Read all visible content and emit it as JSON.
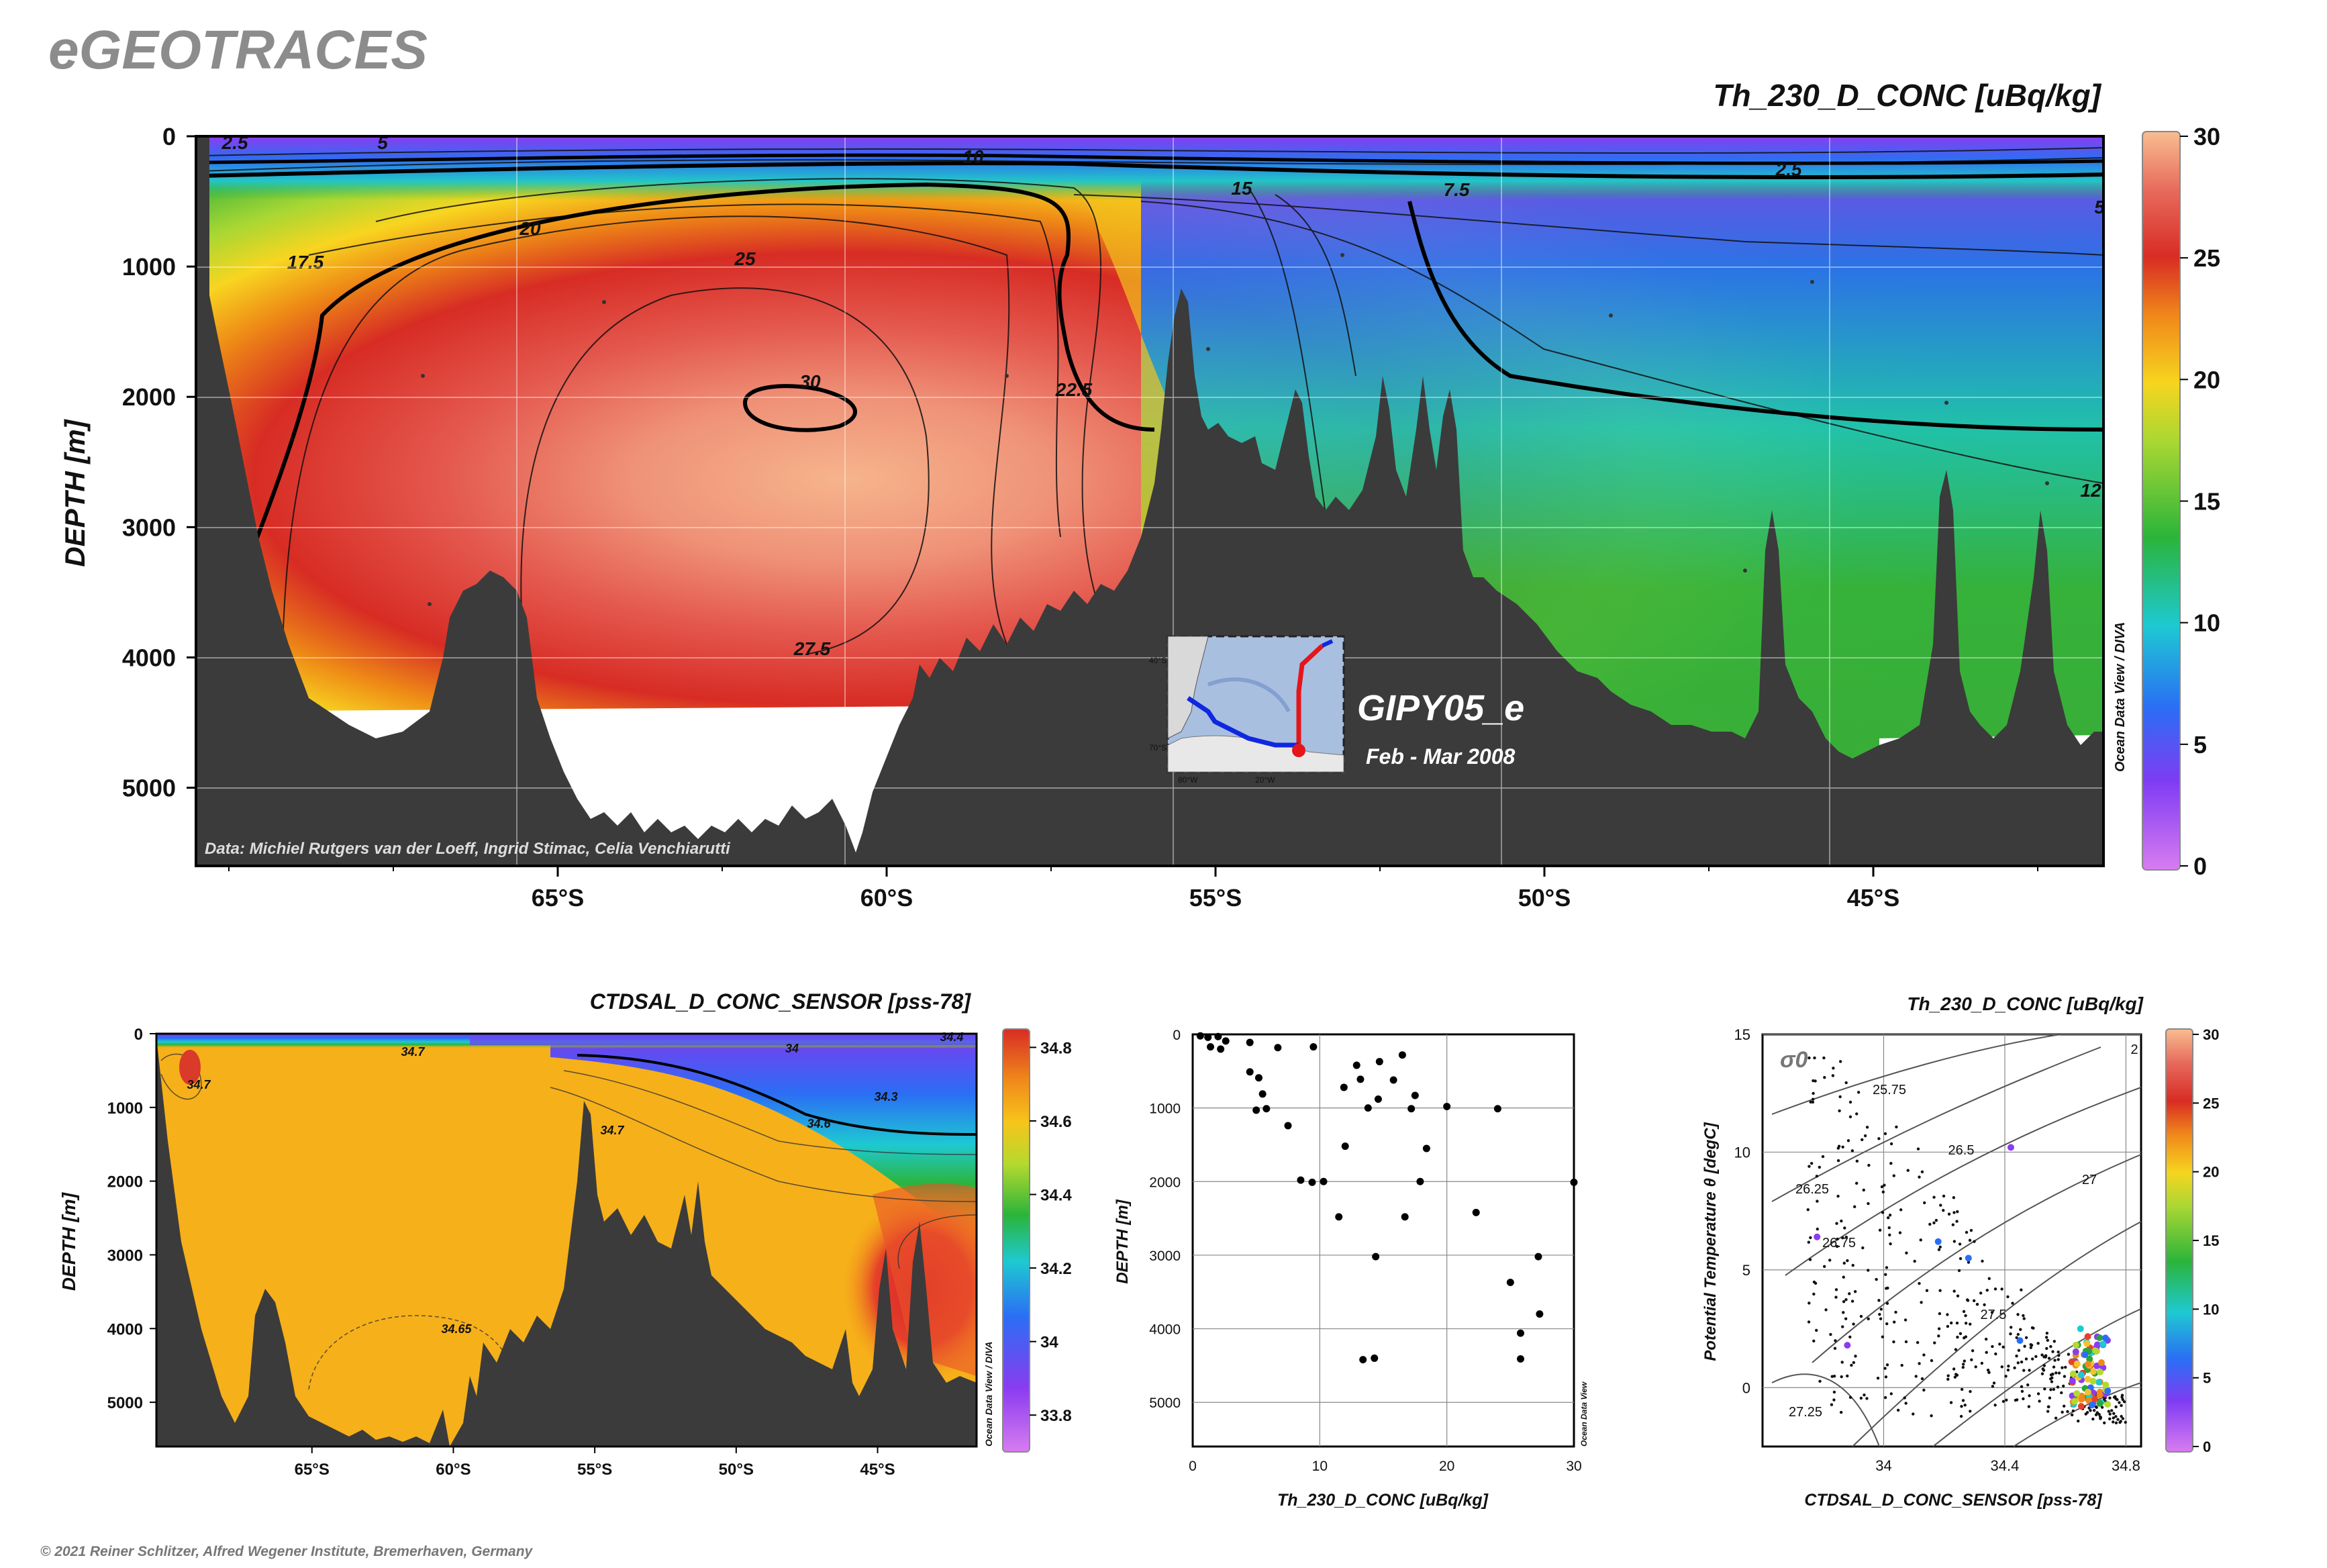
{
  "brand": "eGEOTRACES",
  "copyright": "© 2021 Reiner Schlitzer, Alfred Wegener Institute, Bremerhaven, Germany",
  "chart_data": [
    {
      "type": "heatmap",
      "title": "Th_230_D_CONC [uBq/kg]",
      "ylabel": "DEPTH [m]",
      "xlabel": "",
      "xlim": [
        70.5,
        41.5
      ],
      "ylim": [
        0,
        5600
      ],
      "x_ticks": [
        "65°S",
        "60°S",
        "55°S",
        "50°S",
        "45°S"
      ],
      "x_tick_values": [
        65,
        60,
        55,
        50,
        45
      ],
      "y_ticks": [
        "0",
        "1000",
        "2000",
        "3000",
        "4000",
        "5000"
      ],
      "y_tick_values": [
        0,
        1000,
        2000,
        3000,
        4000,
        5000
      ],
      "colorbar": {
        "ticks": [
          "0",
          "5",
          "10",
          "15",
          "20",
          "25",
          "30"
        ],
        "min": 0,
        "max": 30
      },
      "contour_labels": [
        "2.5",
        "5",
        "10",
        "15",
        "7.5",
        "2.5",
        "5",
        "17.5",
        "20",
        "25",
        "30",
        "22.5",
        "27.5",
        "12"
      ],
      "section_name": "GIPY05_e",
      "date_range": "Feb - Mar 2008",
      "credit": "Data: Michiel Rutgers van der Loeff, Ingrid Stimac, Celia Venchiarutti",
      "watermark": "Ocean Data View / DIVA",
      "inset_map_labels": [
        "40°S",
        "70°S",
        "80°W",
        "20°W"
      ]
    },
    {
      "type": "heatmap",
      "title": "CTDSAL_D_CONC_SENSOR [pss-78]",
      "ylabel": "DEPTH [m]",
      "xlabel": "",
      "x_ticks": [
        "65°S",
        "60°S",
        "55°S",
        "50°S",
        "45°S"
      ],
      "x_tick_values": [
        65,
        60,
        55,
        50,
        45
      ],
      "y_ticks": [
        "0",
        "1000",
        "2000",
        "3000",
        "4000",
        "5000"
      ],
      "y_tick_values": [
        0,
        1000,
        2000,
        3000,
        4000,
        5000
      ],
      "colorbar": {
        "ticks": [
          "34.8",
          "34.6",
          "34.4",
          "34.2",
          "34",
          "33.8"
        ],
        "min": 33.7,
        "max": 34.85
      },
      "contour_labels": [
        "34.7",
        "34.7",
        "34.7",
        "34.65",
        "34.6",
        "34.3",
        "34.4",
        "34"
      ],
      "watermark": "Ocean Data View / DIVA"
    },
    {
      "type": "scatter",
      "title": "",
      "xlabel": "Th_230_D_CONC [uBq/kg]",
      "ylabel": "DEPTH [m]",
      "xlim": [
        0,
        30
      ],
      "ylim": [
        5600,
        0
      ],
      "x_ticks": [
        "0",
        "10",
        "20",
        "30"
      ],
      "y_ticks": [
        "0",
        "1000",
        "2000",
        "3000",
        "4000",
        "5000"
      ],
      "watermark": "Ocean Data View",
      "points": [
        [
          0.6,
          20
        ],
        [
          1.2,
          40
        ],
        [
          2.0,
          30
        ],
        [
          2.6,
          90
        ],
        [
          1.4,
          170
        ],
        [
          2.2,
          200
        ],
        [
          4.5,
          110
        ],
        [
          6.7,
          180
        ],
        [
          9.5,
          170
        ],
        [
          12.9,
          420
        ],
        [
          14.7,
          370
        ],
        [
          16.5,
          280
        ],
        [
          13.2,
          610
        ],
        [
          15.8,
          620
        ],
        [
          11.9,
          720
        ],
        [
          4.5,
          510
        ],
        [
          5.2,
          590
        ],
        [
          5.5,
          810
        ],
        [
          5.0,
          1030
        ],
        [
          5.8,
          1010
        ],
        [
          7.5,
          1240
        ],
        [
          13.8,
          1000
        ],
        [
          14.6,
          880
        ],
        [
          17.5,
          830
        ],
        [
          17.2,
          1010
        ],
        [
          20.0,
          980
        ],
        [
          24.0,
          1010
        ],
        [
          12.0,
          1520
        ],
        [
          18.4,
          1550
        ],
        [
          8.5,
          1980
        ],
        [
          9.4,
          2010
        ],
        [
          10.3,
          2000
        ],
        [
          17.9,
          2000
        ],
        [
          11.5,
          2480
        ],
        [
          16.7,
          2480
        ],
        [
          22.3,
          2420
        ],
        [
          30.0,
          2010
        ],
        [
          14.4,
          3020
        ],
        [
          27.2,
          3020
        ],
        [
          25.0,
          3370
        ],
        [
          27.3,
          3800
        ],
        [
          25.8,
          4060
        ],
        [
          25.8,
          4410
        ],
        [
          13.4,
          4420
        ],
        [
          14.3,
          4400
        ]
      ]
    },
    {
      "type": "scatter",
      "title": "Th_230_D_CONC [uBq/kg]",
      "xlabel": "CTDSAL_D_CONC_SENSOR [pss-78]",
      "ylabel": "Potential Temperature θ [degC]",
      "xlim": [
        33.6,
        34.85
      ],
      "ylim": [
        -2.5,
        15
      ],
      "x_ticks": [
        "34",
        "34.4",
        "34.8"
      ],
      "x_tick_values": [
        34,
        34.4,
        34.8
      ],
      "y_ticks": [
        "0",
        "5",
        "10",
        "15"
      ],
      "y_tick_values": [
        0,
        5,
        10,
        15
      ],
      "sigma_label": "σ0",
      "isopycnal_labels": [
        "25.75",
        "26.25",
        "26.5",
        "26.75",
        "27",
        "27.5",
        "27.25",
        "2"
      ],
      "colorbar": {
        "ticks": [
          "0",
          "5",
          "10",
          "15",
          "20",
          "25",
          "30"
        ],
        "min": 0,
        "max": 30
      }
    }
  ]
}
